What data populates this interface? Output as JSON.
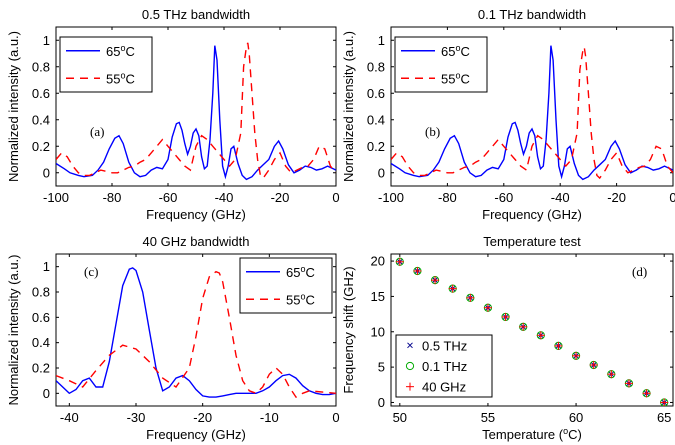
{
  "chart_data": [
    {
      "type": "line",
      "panel_label": "(a)",
      "title": "0.5 THz bandwidth",
      "xlabel": "Frequency (GHz)",
      "ylabel": "Normalized intensity (a.u.)",
      "xlim": [
        -100,
        0
      ],
      "ylim": [
        -0.1,
        1.1
      ],
      "xticks": [
        "-100",
        "-80",
        "-60",
        "-40",
        "-20",
        "0"
      ],
      "yticks": [
        "0",
        "0.2",
        "0.4",
        "0.6",
        "0.8",
        "1"
      ],
      "grid": false,
      "legend": "top-left",
      "series": [
        {
          "name": "65",
          "unit": "C",
          "color": "#0000ff",
          "dash": "solid",
          "x": [
            -100,
            -97,
            -95,
            -92,
            -90,
            -87,
            -85,
            -83,
            -81,
            -79,
            -77.5,
            -76,
            -74,
            -72,
            -70,
            -68,
            -66,
            -64,
            -62,
            -60,
            -58.5,
            -57,
            -56,
            -55,
            -54,
            -53,
            -52,
            -51,
            -50,
            -49,
            -48,
            -47,
            -46,
            -45,
            -44,
            -43.3,
            -42.5,
            -41.5,
            -40.5,
            -39.5,
            -38.5,
            -37.5,
            -36.5,
            -35,
            -33.5,
            -32,
            -30,
            -28,
            -26,
            -24,
            -22,
            -20.5,
            -19,
            -17,
            -15,
            -13,
            -11,
            -9,
            -7,
            -5,
            -3,
            -1,
            0
          ],
          "y": [
            0.07,
            0.03,
            0,
            -0.02,
            -0.03,
            -0.02,
            0.02,
            0.08,
            0.18,
            0.26,
            0.28,
            0.22,
            0.08,
            0,
            -0.03,
            -0.02,
            0.02,
            0.04,
            0.03,
            0.1,
            0.27,
            0.37,
            0.38,
            0.32,
            0.22,
            0.14,
            0.2,
            0.3,
            0.33,
            0.28,
            0.12,
            0.03,
            0.05,
            0.25,
            0.6,
            0.96,
            0.85,
            0.4,
            0.05,
            -0.03,
            0.05,
            0.18,
            0.2,
            0.07,
            -0.02,
            -0.05,
            -0.03,
            0.02,
            0.06,
            0.1,
            0.2,
            0.24,
            0.18,
            0.06,
            0,
            0.02,
            0.05,
            0.04,
            0.02,
            0.03,
            0.05,
            0.03,
            0.02
          ]
        },
        {
          "name": "55",
          "unit": "C",
          "color": "#ff0000",
          "dash": "8,6",
          "x": [
            -100,
            -98,
            -96,
            -94,
            -92,
            -90,
            -88,
            -86,
            -84,
            -82,
            -80,
            -78,
            -76,
            -74,
            -72,
            -70,
            -68,
            -66,
            -64,
            -62,
            -60,
            -58,
            -56,
            -54,
            -52,
            -50,
            -48,
            -46,
            -44,
            -42,
            -40,
            -38,
            -36,
            -34,
            -33,
            -32,
            -31.5,
            -31,
            -30,
            -29,
            -28,
            -27,
            -26,
            -24,
            -22,
            -20,
            -18,
            -16,
            -14,
            -12,
            -10,
            -8,
            -6,
            -4,
            -2,
            0
          ],
          "y": [
            0.1,
            0.15,
            0.12,
            0.05,
            0,
            -0.02,
            -0.02,
            0,
            0.02,
            0.01,
            0,
            0,
            0.02,
            0.04,
            0.05,
            0.08,
            0.1,
            0.15,
            0.2,
            0.25,
            0.2,
            0.15,
            0.1,
            0.05,
            0.02,
            0.2,
            0.28,
            0.25,
            0.2,
            0.15,
            0.1,
            0.05,
            0.1,
            0.3,
            0.8,
            0.95,
            0.98,
            0.9,
            0.6,
            0.3,
            0.1,
            -0.02,
            -0.04,
            0.02,
            0.1,
            0.15,
            0.05,
            0,
            0.02,
            0.04,
            0.05,
            0.1,
            0.2,
            0.18,
            0.05,
            0
          ]
        }
      ]
    },
    {
      "type": "line",
      "panel_label": "(b)",
      "title": "0.1 THz bandwidth",
      "xlabel": "Frequency (GHz)",
      "ylabel": "Normalized intensity (a.u.)",
      "xlim": [
        -100,
        0
      ],
      "ylim": [
        -0.1,
        1.1
      ],
      "xticks": [
        "-100",
        "-80",
        "-60",
        "-40",
        "-20",
        "0"
      ],
      "yticks": [
        "0",
        "0.2",
        "0.4",
        "0.6",
        "0.8",
        "1"
      ],
      "grid": false,
      "legend": "top-left",
      "series": [
        {
          "name": "65",
          "unit": "C",
          "color": "#0000ff",
          "dash": "solid",
          "x": [
            -100,
            -97,
            -95,
            -92,
            -90,
            -87,
            -85,
            -83,
            -81,
            -79,
            -77.5,
            -76,
            -74,
            -72,
            -70,
            -68,
            -66,
            -64,
            -62,
            -60,
            -58.5,
            -57,
            -56,
            -55,
            -54,
            -53,
            -52,
            -51,
            -50,
            -49,
            -48,
            -47,
            -46,
            -45,
            -44,
            -43.3,
            -42.5,
            -41.5,
            -40.5,
            -39.5,
            -38.5,
            -37.5,
            -36.5,
            -35,
            -33.5,
            -32,
            -30,
            -28,
            -26,
            -24,
            -22,
            -20.5,
            -19,
            -17,
            -15,
            -13,
            -11,
            -9,
            -7,
            -5,
            -3,
            -1,
            0
          ],
          "y": [
            0.07,
            0.03,
            0,
            -0.02,
            -0.03,
            -0.02,
            0.02,
            0.08,
            0.18,
            0.26,
            0.28,
            0.22,
            0.08,
            0,
            -0.03,
            -0.02,
            0.02,
            0.04,
            0.03,
            0.1,
            0.27,
            0.37,
            0.38,
            0.32,
            0.22,
            0.14,
            0.2,
            0.3,
            0.33,
            0.28,
            0.12,
            0.03,
            0.05,
            0.25,
            0.6,
            0.96,
            0.85,
            0.4,
            0.05,
            -0.03,
            0.05,
            0.18,
            0.2,
            0.07,
            -0.02,
            -0.05,
            -0.03,
            0.02,
            0.06,
            0.1,
            0.2,
            0.24,
            0.18,
            0.06,
            0,
            0.02,
            0.05,
            0.04,
            0.02,
            0.03,
            0.05,
            0.03,
            0.02
          ]
        },
        {
          "name": "55",
          "unit": "C",
          "color": "#ff0000",
          "dash": "8,6",
          "x": [
            -100,
            -98,
            -96,
            -94,
            -92,
            -90,
            -88,
            -86,
            -84,
            -82,
            -80,
            -78,
            -76,
            -74,
            -72,
            -70,
            -68,
            -66,
            -64,
            -62,
            -60,
            -58,
            -56,
            -54,
            -52,
            -50,
            -48,
            -46,
            -44,
            -42,
            -40,
            -38,
            -36,
            -34,
            -33,
            -32,
            -31.5,
            -31,
            -30,
            -29,
            -28,
            -27,
            -26,
            -24,
            -22,
            -20,
            -18,
            -16,
            -14,
            -12,
            -10,
            -8,
            -6,
            -4,
            -2,
            0
          ],
          "y": [
            0.1,
            0.15,
            0.12,
            0.05,
            0,
            -0.02,
            -0.02,
            0,
            0.02,
            0.01,
            0,
            0,
            0.02,
            0.04,
            0.05,
            0.08,
            0.1,
            0.15,
            0.2,
            0.25,
            0.2,
            0.15,
            0.1,
            0.05,
            0.02,
            0.2,
            0.28,
            0.25,
            0.2,
            0.15,
            0.1,
            0.05,
            0.1,
            0.3,
            0.78,
            0.92,
            0.95,
            0.88,
            0.6,
            0.3,
            0.1,
            -0.02,
            -0.04,
            0.02,
            0.1,
            0.15,
            0.05,
            0,
            0.02,
            0.04,
            0.05,
            0.1,
            0.2,
            0.18,
            0.05,
            0
          ]
        }
      ]
    },
    {
      "type": "line",
      "panel_label": "(c)",
      "title": "40 GHz bandwidth",
      "xlabel": "Frequency (GHz)",
      "ylabel": "Normalized intensity (a.u.)",
      "xlim": [
        -42,
        0
      ],
      "ylim": [
        -0.1,
        1.1
      ],
      "xticks": [
        "-40",
        "-30",
        "-20",
        "-10",
        "0"
      ],
      "yticks": [
        "0",
        "0.2",
        "0.4",
        "0.6",
        "0.8",
        "1"
      ],
      "grid": false,
      "legend": "top-right",
      "series": [
        {
          "name": "65",
          "unit": "C",
          "color": "#0000ff",
          "dash": "solid",
          "x": [
            -42,
            -41,
            -40,
            -39,
            -38,
            -37,
            -36,
            -35,
            -34,
            -33,
            -32,
            -31,
            -30.5,
            -30,
            -29,
            -28,
            -27,
            -26,
            -25,
            -24,
            -23,
            -22,
            -21,
            -20,
            -19,
            -18,
            -17,
            -16,
            -15,
            -14,
            -13,
            -12,
            -11,
            -10,
            -9,
            -8,
            -7,
            -6,
            -5,
            -4,
            -3,
            -2,
            -1,
            0
          ],
          "y": [
            0.1,
            0.05,
            0,
            0.03,
            0.1,
            0.12,
            0.05,
            0.05,
            0.25,
            0.55,
            0.85,
            0.98,
            0.99,
            0.97,
            0.8,
            0.5,
            0.2,
            0.02,
            0.05,
            0.12,
            0.14,
            0.1,
            0.03,
            -0.02,
            -0.03,
            -0.03,
            -0.02,
            -0.01,
            0,
            0,
            0,
            0,
            0.02,
            0.05,
            0.1,
            0.14,
            0.15,
            0.12,
            0.06,
            0.02,
            0,
            -0.01,
            -0.01,
            0
          ]
        },
        {
          "name": "55",
          "unit": "C",
          "color": "#ff0000",
          "dash": "8,6",
          "x": [
            -42,
            -40,
            -38,
            -36,
            -34,
            -32,
            -30,
            -28,
            -26,
            -24,
            -22,
            -21,
            -20,
            -19,
            -18,
            -17.5,
            -17,
            -16,
            -15,
            -14,
            -13,
            -12,
            -11,
            -10,
            -9,
            -8,
            -7,
            -6,
            -5,
            -4,
            -2,
            0
          ],
          "y": [
            0.14,
            0.1,
            0.05,
            0.18,
            0.3,
            0.38,
            0.35,
            0.25,
            0.12,
            0.05,
            0.2,
            0.45,
            0.75,
            0.92,
            0.96,
            0.95,
            0.88,
            0.6,
            0.3,
            0.1,
            0.02,
            0,
            0.05,
            0.15,
            0.2,
            0.15,
            0.05,
            -0.03,
            0,
            0.02,
            0.01,
            0
          ]
        }
      ]
    },
    {
      "type": "scatter",
      "panel_label": "(d)",
      "title": "Temperature test",
      "xlabel": "Temperature (",
      "xlabel_sup": "o",
      "xlabel_tail": "C)",
      "ylabel": "Frequency shift (GHz)",
      "xlim": [
        49.5,
        65.5
      ],
      "ylim": [
        -0.5,
        21
      ],
      "xticks": [
        "50",
        "55",
        "60",
        "65"
      ],
      "yticks": [
        "0",
        "5",
        "10",
        "15",
        "20"
      ],
      "grid": false,
      "legend": "bottom-left",
      "series": [
        {
          "name": "0.5 THz",
          "marker": "x",
          "color": "#00008b",
          "x": [
            50,
            51,
            52,
            53,
            54,
            55,
            56,
            57,
            58,
            59,
            60,
            61,
            62,
            63,
            64,
            65
          ],
          "y": [
            19.9,
            18.6,
            17.3,
            16.1,
            14.8,
            13.4,
            12.1,
            10.7,
            9.5,
            8.0,
            6.6,
            5.3,
            4.0,
            2.7,
            1.3,
            0.0
          ]
        },
        {
          "name": "0.1 THz",
          "marker": "o",
          "color": "#00aa00",
          "x": [
            50,
            51,
            52,
            53,
            54,
            55,
            56,
            57,
            58,
            59,
            60,
            61,
            62,
            63,
            64,
            65
          ],
          "y": [
            19.9,
            18.6,
            17.3,
            16.1,
            14.8,
            13.4,
            12.1,
            10.7,
            9.5,
            8.0,
            6.6,
            5.3,
            4.0,
            2.7,
            1.3,
            0.0
          ]
        },
        {
          "name": "40 GHz",
          "marker": "+",
          "color": "#ff0000",
          "x": [
            50,
            51,
            52,
            53,
            54,
            55,
            56,
            57,
            58,
            59,
            60,
            61,
            62,
            63,
            64,
            65
          ],
          "y": [
            19.9,
            18.6,
            17.3,
            16.1,
            14.8,
            13.4,
            12.1,
            10.7,
            9.5,
            8.0,
            6.6,
            5.3,
            4.0,
            2.7,
            1.3,
            0.0
          ]
        }
      ]
    }
  ]
}
